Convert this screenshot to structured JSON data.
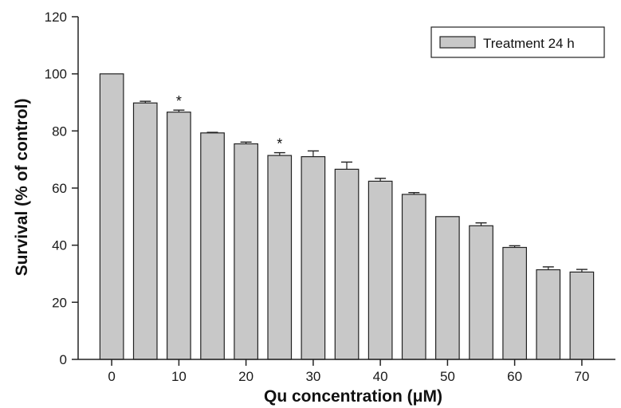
{
  "chart_data": {
    "type": "bar",
    "x": [
      0,
      5,
      10,
      15,
      20,
      25,
      30,
      35,
      40,
      45,
      50,
      55,
      60,
      65,
      70
    ],
    "series": [
      {
        "name": "Treatment 24 h",
        "values": [
          100,
          89.8,
          86.6,
          79.3,
          75.5,
          71.4,
          71.0,
          66.6,
          62.4,
          57.8,
          50.0,
          46.8,
          39.2,
          31.4,
          30.6
        ],
        "errors": [
          0,
          0.6,
          0.7,
          0.2,
          0.6,
          1.0,
          2.0,
          2.5,
          1.0,
          0.6,
          0,
          1.0,
          0.6,
          1.0,
          0.9
        ],
        "significance": [
          "",
          "",
          "*",
          "",
          "",
          "*",
          "",
          "",
          "",
          "",
          "",
          "",
          "",
          "",
          ""
        ],
        "color": "#c8c8c8",
        "edge_color": "#222222"
      }
    ],
    "xticks": [
      0,
      10,
      20,
      30,
      40,
      50,
      60,
      70
    ],
    "xtick_labels": [
      "0",
      "10",
      "20",
      "30",
      "40",
      "50",
      "60",
      "70"
    ],
    "yticks": [
      0,
      20,
      40,
      60,
      80,
      100,
      120
    ],
    "ytick_labels": [
      "0",
      "20",
      "40",
      "60",
      "80",
      "100",
      "120"
    ],
    "xlabel": "Qu concentration (μM)",
    "ylabel": "Survival (% of control)",
    "ylim": [
      0,
      120
    ],
    "xlim": [
      -5,
      75
    ],
    "grid": false,
    "legend": {
      "position": "top-right",
      "label": "Treatment 24 h"
    },
    "axis_color": "#222222"
  }
}
